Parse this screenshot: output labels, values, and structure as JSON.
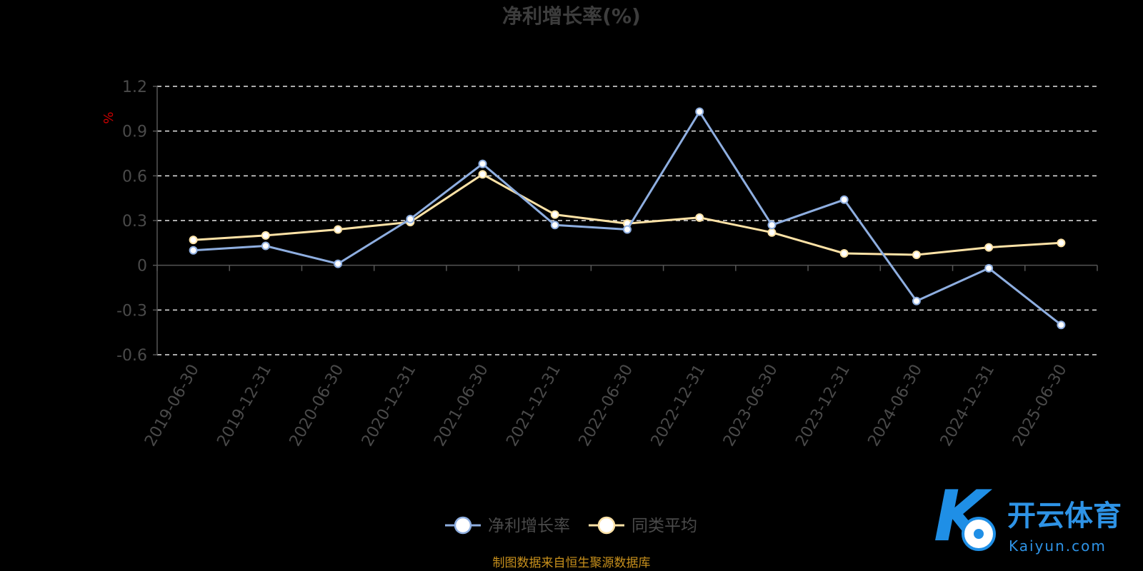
{
  "chart_data": {
    "type": "line",
    "title": "净利增长率(%)",
    "unit_label": "%",
    "categories": [
      "2019-06-30",
      "2019-12-31",
      "2020-06-30",
      "2020-12-31",
      "2021-06-30",
      "2021-12-31",
      "2022-06-30",
      "2022-12-31",
      "2023-06-30",
      "2023-12-31",
      "2024-06-30",
      "2024-12-31",
      "2025-06-30"
    ],
    "series": [
      {
        "name": "净利增长率",
        "color": "#8eaee0",
        "values": [
          0.1,
          0.13,
          0.01,
          0.31,
          0.68,
          0.27,
          0.24,
          1.03,
          0.27,
          0.44,
          -0.24,
          -0.02,
          -0.4
        ]
      },
      {
        "name": "同类平均",
        "color": "#fde2a6",
        "values": [
          0.17,
          0.2,
          0.24,
          0.29,
          0.61,
          0.34,
          0.28,
          0.32,
          0.22,
          0.08,
          0.07,
          0.12,
          0.15
        ]
      }
    ],
    "ylim": [
      -0.6,
      1.2
    ],
    "yticks": [
      "-0.6",
      "-0.3",
      "0",
      "0.3",
      "0.6",
      "0.9",
      "1.2"
    ],
    "grid": true,
    "legend_position": "bottom-center"
  },
  "source_note": "制图数据来自恒生聚源数据库",
  "watermark": {
    "cn": "开云体育",
    "en": "Kaiyun.com",
    "logo_letter": "K"
  }
}
